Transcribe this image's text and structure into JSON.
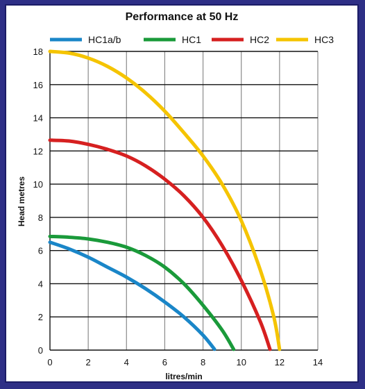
{
  "chart_data": {
    "type": "line",
    "title": "Performance at 50 Hz",
    "xlabel": "litres/min",
    "ylabel": "Head metres",
    "xlim": [
      0,
      14
    ],
    "ylim": [
      0,
      18
    ],
    "x_ticks": [
      0,
      2,
      4,
      6,
      8,
      10,
      12,
      14
    ],
    "y_ticks": [
      0,
      2,
      4,
      6,
      8,
      10,
      12,
      14,
      16,
      18
    ],
    "grid": true,
    "legend_position": "top",
    "series": [
      {
        "name": "HC1a/b",
        "color": "#1a86c8",
        "x": [
          0,
          1,
          2,
          3,
          4,
          5,
          6,
          7,
          8,
          8.6
        ],
        "y": [
          6.5,
          6.1,
          5.6,
          5.0,
          4.4,
          3.7,
          2.9,
          2.0,
          0.9,
          0.05
        ]
      },
      {
        "name": "HC1",
        "color": "#1a9a3a",
        "x": [
          0,
          1,
          2,
          3,
          4,
          5,
          6,
          7,
          8,
          9,
          9.6
        ],
        "y": [
          6.85,
          6.8,
          6.7,
          6.5,
          6.2,
          5.7,
          5.0,
          4.0,
          2.7,
          1.2,
          0.05
        ]
      },
      {
        "name": "HC2",
        "color": "#d62020",
        "x": [
          0,
          1,
          2,
          3,
          4,
          5,
          6,
          7,
          8,
          9,
          10,
          11,
          11.5
        ],
        "y": [
          12.65,
          12.6,
          12.4,
          12.1,
          11.7,
          11.1,
          10.3,
          9.3,
          8.0,
          6.3,
          4.2,
          1.7,
          0.05
        ]
      },
      {
        "name": "HC3",
        "color": "#f5c400",
        "x": [
          0,
          1,
          2,
          3,
          4,
          5,
          6,
          7,
          8,
          9,
          10,
          11,
          11.7,
          12.0
        ],
        "y": [
          18.0,
          17.9,
          17.6,
          17.1,
          16.4,
          15.5,
          14.4,
          13.1,
          11.7,
          10.0,
          7.8,
          4.8,
          2.0,
          0.05
        ]
      }
    ]
  }
}
